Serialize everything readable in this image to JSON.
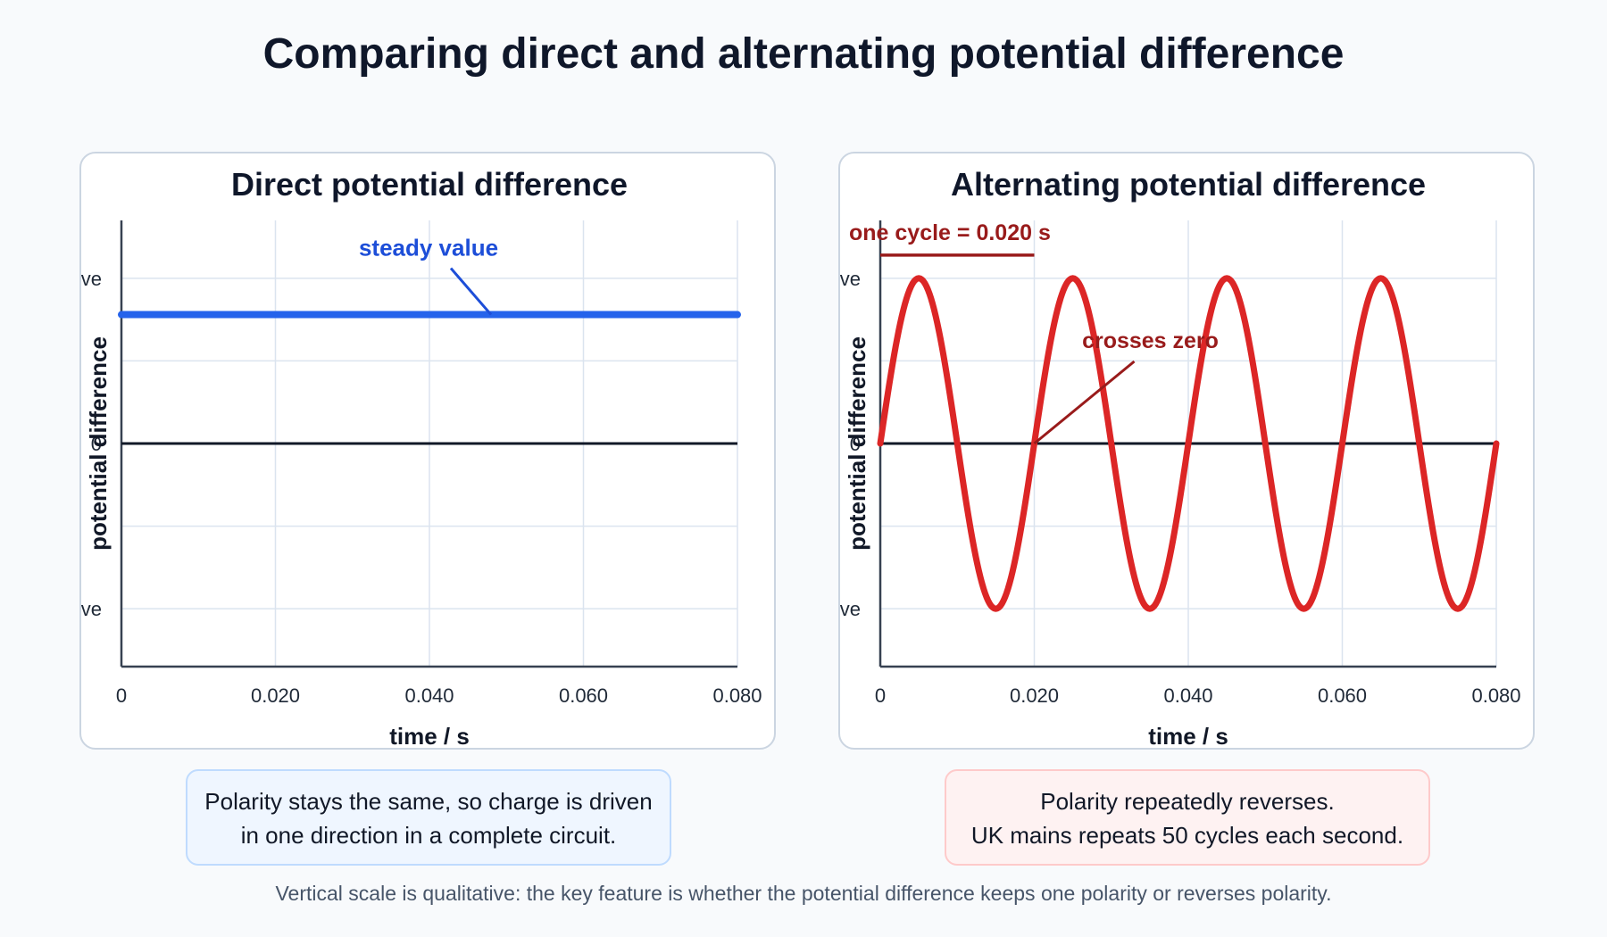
{
  "title": "Comparing direct and alternating potential difference",
  "captions": {
    "dc": [
      "Polarity stays the same, so charge is driven",
      "in one direction in a complete circuit."
    ],
    "ac": [
      "Polarity repeatedly reverses.",
      "UK mains repeats 50 cycles each second."
    ]
  },
  "footnote": "Vertical scale is qualitative: the key feature is whether the potential difference keeps one polarity or reverses polarity.",
  "colors": {
    "dc_line": "#2563eb",
    "dc_annotation": "#1d4ed8",
    "ac_line": "#dc2626",
    "ac_annotation": "#991b1b",
    "zero_line": "#111827",
    "grid": "#dbe4ef",
    "axis": "#374151"
  },
  "chart_data": [
    {
      "type": "line",
      "title": "Direct potential difference",
      "xlabel": "time / s",
      "ylabel": "potential difference",
      "xlim": [
        0,
        0.08
      ],
      "ylim": [
        -1.35,
        1.35
      ],
      "x_ticks": [
        "0",
        "0.020",
        "0.040",
        "0.060",
        "0.080"
      ],
      "x_tick_values": [
        0,
        0.02,
        0.04,
        0.06,
        0.08
      ],
      "y_ticks": [
        {
          "label": "positive",
          "value": 1
        },
        {
          "label": "0",
          "value": 0
        },
        {
          "label": "negative",
          "value": -1
        }
      ],
      "grid": true,
      "series": [
        {
          "kind": "constant",
          "value": 0.78,
          "x": [
            0,
            0.08
          ],
          "color": "#2563eb"
        }
      ],
      "annotations": [
        {
          "text": "steady value",
          "point": [
            0.048,
            0.78
          ]
        }
      ]
    },
    {
      "type": "line",
      "title": "Alternating potential difference",
      "xlabel": "time / s",
      "ylabel": "potential difference",
      "xlim": [
        0,
        0.08
      ],
      "ylim": [
        -1.35,
        1.35
      ],
      "x_ticks": [
        "0",
        "0.020",
        "0.040",
        "0.060",
        "0.080"
      ],
      "x_tick_values": [
        0,
        0.02,
        0.04,
        0.06,
        0.08
      ],
      "y_ticks": [
        {
          "label": "positive",
          "value": 1
        },
        {
          "label": "0",
          "value": 0
        },
        {
          "label": "negative",
          "value": -1
        }
      ],
      "grid": true,
      "series": [
        {
          "kind": "sine",
          "amplitude": 1,
          "period": 0.02,
          "x": [
            0,
            0.08
          ],
          "color": "#dc2626"
        }
      ],
      "annotations": [
        {
          "text": "one cycle = 0.020 s",
          "span": [
            0,
            0.02
          ]
        },
        {
          "text": "crosses zero",
          "point": [
            0.02,
            0
          ]
        }
      ]
    }
  ]
}
